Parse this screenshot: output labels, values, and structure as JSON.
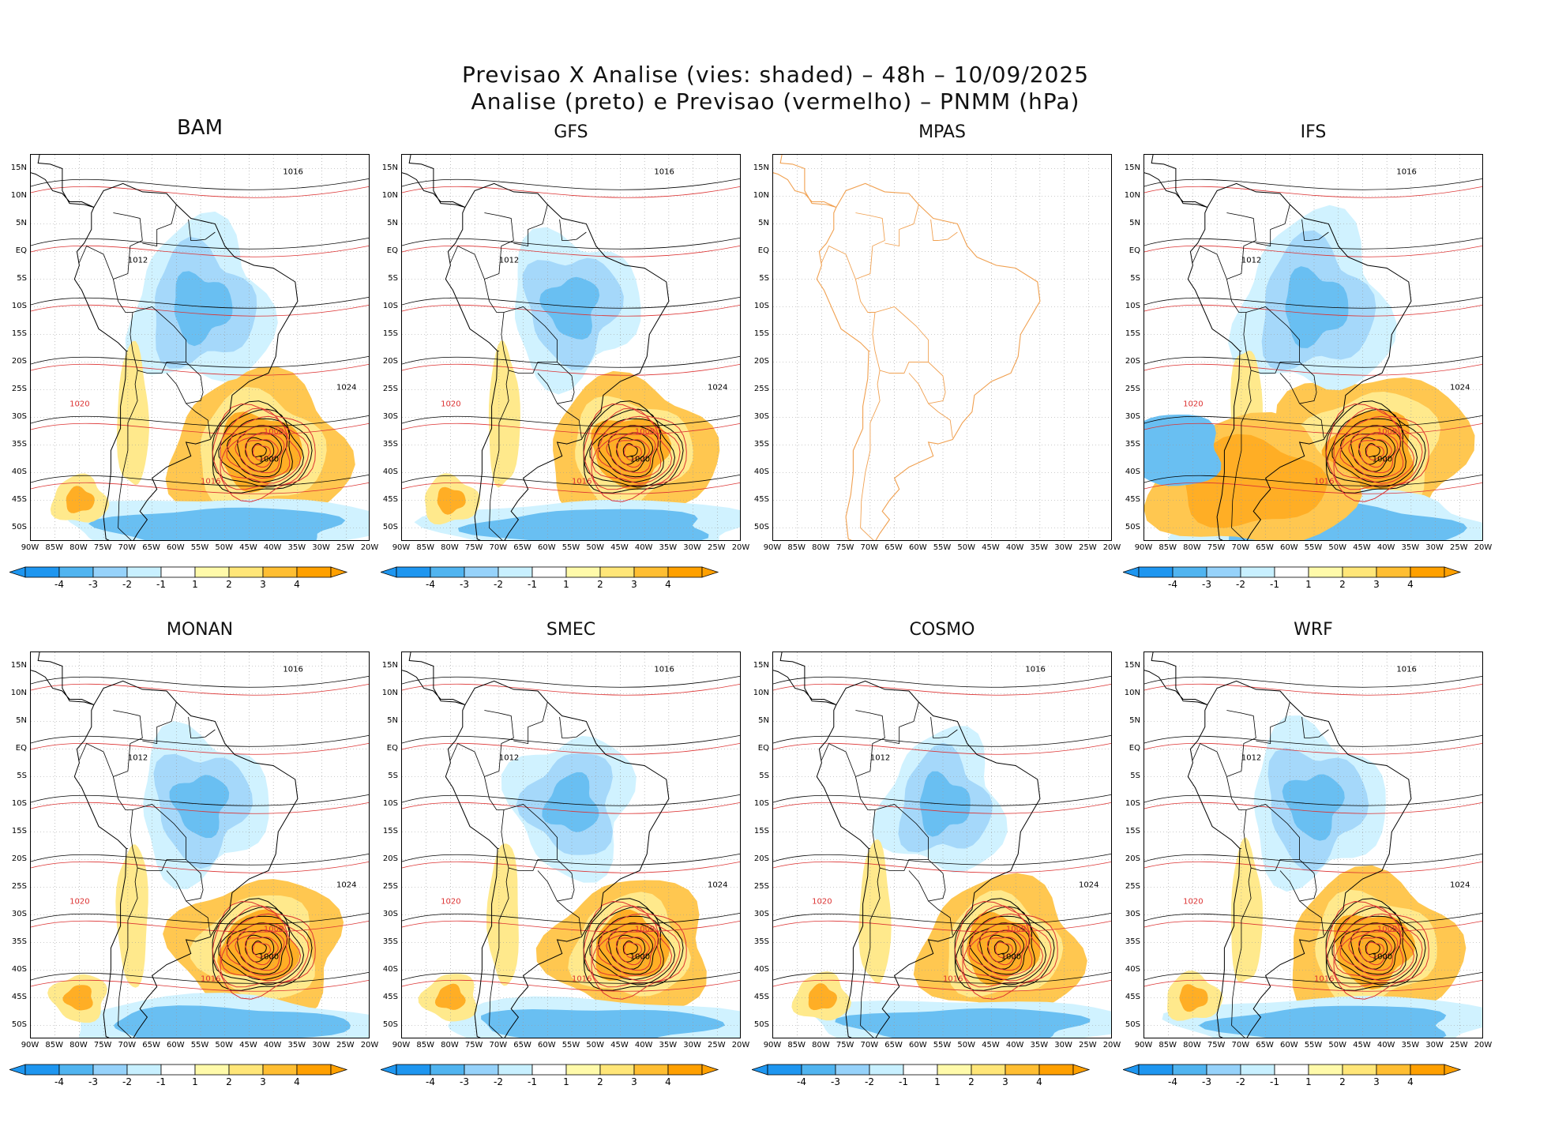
{
  "figure": {
    "title_line1": "Previsao X Analise (vies: shaded) – 48h – 10/09/2025",
    "title_line2": "Analise (preto) e Previsao (vermelho) – PNMM (hPa)"
  },
  "lat_labels": [
    "15N",
    "10N",
    "5N",
    "EQ",
    "5S",
    "10S",
    "15S",
    "20S",
    "25S",
    "30S",
    "35S",
    "40S",
    "45S",
    "50S"
  ],
  "lon_labels": [
    "90W",
    "85W",
    "80W",
    "75W",
    "70W",
    "65W",
    "60W",
    "55W",
    "50W",
    "45W",
    "40W",
    "35W",
    "30W",
    "25W",
    "20W"
  ],
  "colorbar": {
    "labels": [
      "-4",
      "-3",
      "-2",
      "-1",
      "1",
      "2",
      "3",
      "4"
    ],
    "colors": [
      "#1e96f0",
      "#50b4f0",
      "#96d2fa",
      "#c8f0ff",
      "#ffffff",
      "#fffaaa",
      "#ffe678",
      "#ffbe32",
      "#ffa000"
    ]
  },
  "colors": {
    "land_outline": "#000000",
    "mpas_outline": "#f0a050",
    "analysis_contour": "#000000",
    "forecast_contour": "#dc3232",
    "grid": "#999999"
  },
  "panels": [
    {
      "name": "BAM",
      "has_colorbar": true,
      "intensity": 0.8
    },
    {
      "name": "GFS",
      "has_colorbar": true,
      "intensity": 0.6
    },
    {
      "name": "MPAS",
      "has_colorbar": false,
      "intensity": 0
    },
    {
      "name": "IFS",
      "has_colorbar": true,
      "intensity": 1.0
    },
    {
      "name": "MONAN",
      "has_colorbar": true,
      "intensity": 0.6
    },
    {
      "name": "SMEC",
      "has_colorbar": true,
      "intensity": 0.5
    },
    {
      "name": "COSMO",
      "has_colorbar": true,
      "intensity": 0.5
    },
    {
      "name": "WRF",
      "has_colorbar": true,
      "intensity": 0.7
    }
  ],
  "contour_labels": [
    "1000",
    "1004",
    "1008",
    "1012",
    "1016",
    "1020",
    "1024"
  ]
}
